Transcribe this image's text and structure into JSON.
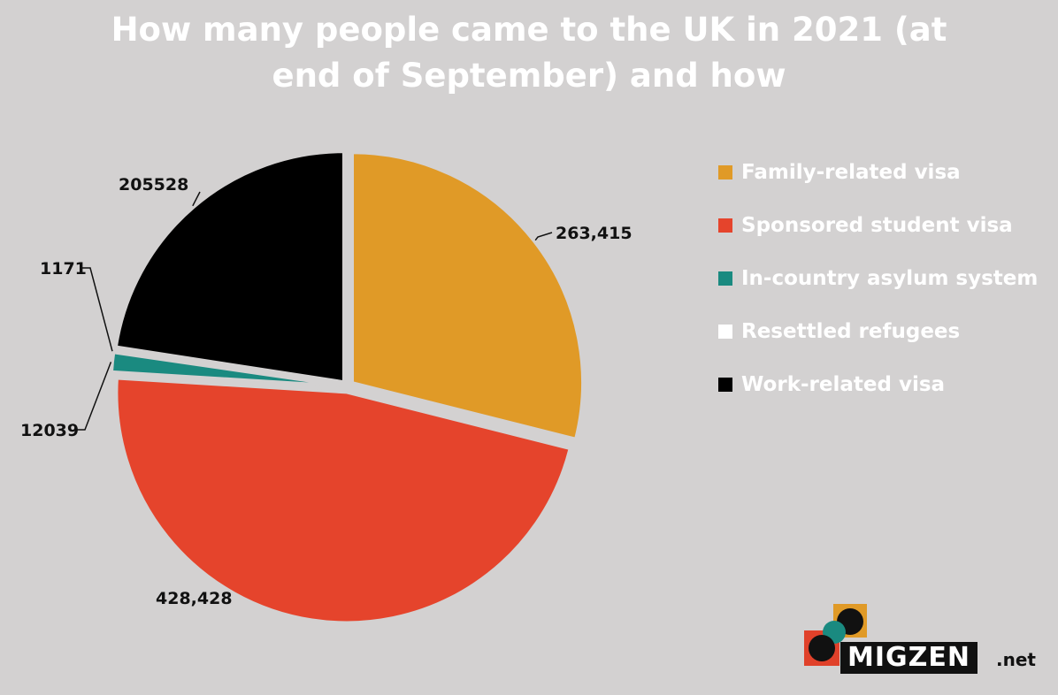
{
  "title": {
    "line1": "How many people came to the UK in 2021 (at",
    "line2": "end of September) and how"
  },
  "chart_data": {
    "type": "pie",
    "title": "How many people came to the UK in 2021 (at end of September) and how",
    "legend_position": "right",
    "series": [
      {
        "name": "Family-related visa",
        "value": 263415,
        "label": "263,415",
        "color": "#e09a27"
      },
      {
        "name": "Sponsored student visa",
        "value": 428428,
        "label": "428,428",
        "color": "#e5442c"
      },
      {
        "name": "In-country asylum system",
        "value": 12039,
        "label": "12039",
        "color": "#1a8a80"
      },
      {
        "name": "Resettled refugees",
        "value": 1171,
        "label": "1171",
        "color": "#ffffff"
      },
      {
        "name": "Work-related visa",
        "value": 205528,
        "label": "205528",
        "color": "#000000"
      }
    ]
  },
  "logo": {
    "brand": "MIGZEN",
    "suffix": ".net"
  }
}
